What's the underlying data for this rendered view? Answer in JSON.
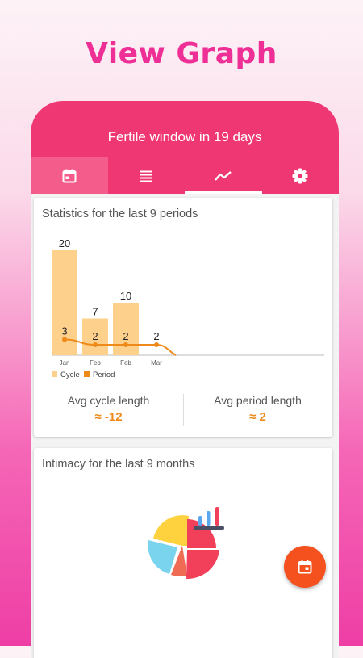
{
  "promo": {
    "title": "View Graph"
  },
  "header": {
    "text": "Fertile window in 19 days"
  },
  "tabs": [
    {
      "icon": "calendar-icon",
      "active": false,
      "highlighted": true
    },
    {
      "icon": "list-icon",
      "active": false
    },
    {
      "icon": "trend-icon",
      "active": true
    },
    {
      "icon": "gear-icon",
      "active": false
    }
  ],
  "statistics": {
    "title": "Statistics for the last 9 periods",
    "avg_cycle_label": "Avg cycle length",
    "avg_cycle_value": "≈ -12",
    "avg_period_label": "Avg period length",
    "avg_period_value": "≈ 2"
  },
  "chart_data": {
    "type": "bar",
    "categories": [
      "Jan",
      "Feb",
      "Feb",
      "Mar"
    ],
    "series": [
      {
        "name": "Cycle",
        "kind": "bar",
        "color": "#fdd08c",
        "values": [
          20,
          7,
          10,
          null
        ]
      },
      {
        "name": "Period",
        "kind": "line",
        "color": "#ee8a1a",
        "values": [
          3,
          2,
          2,
          2
        ]
      }
    ],
    "legend": "bottom-left",
    "grid": false
  },
  "intimacy": {
    "title": "Intimacy for the last 9 months"
  },
  "colors": {
    "accent": "#ef3773",
    "promo_title": "#ee2f96",
    "fab": "#f4511e",
    "stat_value": "#ee8a1a"
  }
}
